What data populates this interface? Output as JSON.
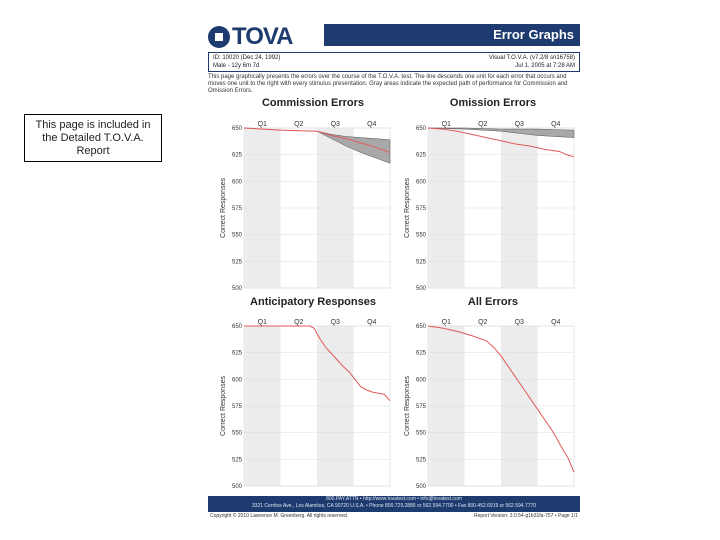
{
  "note": "This page is included in the Detailed T.O.V.A. Report",
  "report": {
    "logo_text": "TOVA",
    "header_title": "Error Graphs",
    "id_line1": "ID: 10020   (Dec 24, 1992)",
    "id_line2": "Male - 12y 6m 7d",
    "test_line1": "Visual T.O.V.A. (v7.2/8 sn16758)",
    "test_line2": "Jul 1, 2005 at 7:28 AM",
    "description": "This page graphically presents the errors over the course of the T.O.V.A. test. The line descends one unit for each error that occurs and moves one unit to the right with every stimulus presentation. Gray areas indicate the expected path of performance for Commission and Omission Errors.",
    "y_axis_label": "Correct Responses",
    "quarter_labels": [
      "Q1",
      "Q2",
      "Q3",
      "Q4"
    ],
    "footer_line1": "800.PAY.ATTN • http://www.tovatest.com • info@tovatest.com",
    "footer_line2": "3321 Cerritos Ave., Los Alamitos, CA 90720 U.S.A. • Phone 800.729.2886 or 562.594.7700 • Fax 800.452.6919 or 562.594.7770",
    "copyright": "Copyright © 2010 Lawrence M. Greenberg. All rights reserved.",
    "version": "Report Version: 3.0.54-g1b31fa-757 • Page 1/1"
  },
  "chart_data": [
    {
      "type": "line",
      "title": "Commission Errors",
      "ylabel": "Correct Responses",
      "yticks": [
        "650",
        "625",
        "600",
        "575",
        "550",
        "525",
        "500"
      ],
      "ylim": [
        500,
        650
      ],
      "xlim": [
        0,
        100
      ],
      "quarters": [
        "Q1",
        "Q2",
        "Q3",
        "Q4"
      ],
      "shaded_quarters": [
        0,
        2
      ],
      "band_upper": [
        [
          0,
          650
        ],
        [
          25,
          648
        ],
        [
          50,
          647
        ],
        [
          60,
          644
        ],
        [
          70,
          642
        ],
        [
          80,
          641
        ],
        [
          90,
          640
        ],
        [
          100,
          639
        ]
      ],
      "band_lower": [
        [
          0,
          650
        ],
        [
          25,
          648
        ],
        [
          50,
          647
        ],
        [
          60,
          640
        ],
        [
          70,
          633
        ],
        [
          80,
          627
        ],
        [
          90,
          622
        ],
        [
          100,
          617
        ]
      ],
      "series": [
        {
          "color": "#e05a5a",
          "points": [
            [
              0,
              650
            ],
            [
              25,
              648
            ],
            [
              50,
              647
            ],
            [
              60,
              643
            ],
            [
              70,
              640
            ],
            [
              80,
              636
            ],
            [
              90,
              632
            ],
            [
              100,
              627
            ]
          ]
        }
      ]
    },
    {
      "type": "line",
      "title": "Omission Errors",
      "ylabel": "Correct Responses",
      "yticks": [
        "650",
        "625",
        "600",
        "575",
        "550",
        "525",
        "500"
      ],
      "ylim": [
        500,
        650
      ],
      "xlim": [
        0,
        100
      ],
      "quarters": [
        "Q1",
        "Q2",
        "Q3",
        "Q4"
      ],
      "shaded_quarters": [
        0,
        2
      ],
      "band_upper": [
        [
          0,
          650
        ],
        [
          25,
          650
        ],
        [
          50,
          649
        ],
        [
          75,
          649
        ],
        [
          100,
          648
        ]
      ],
      "band_lower": [
        [
          0,
          650
        ],
        [
          25,
          649
        ],
        [
          50,
          647
        ],
        [
          75,
          643
        ],
        [
          100,
          641
        ]
      ],
      "series": [
        {
          "color": "#e05a5a",
          "points": [
            [
              0,
              650
            ],
            [
              10,
              649
            ],
            [
              20,
              647
            ],
            [
              30,
              644
            ],
            [
              40,
              641
            ],
            [
              50,
              638
            ],
            [
              60,
              635
            ],
            [
              70,
              633
            ],
            [
              80,
              630
            ],
            [
              90,
              628
            ],
            [
              95,
              625
            ],
            [
              100,
              623
            ]
          ]
        }
      ]
    },
    {
      "type": "line",
      "title": "Anticipatory Responses",
      "ylabel": "Correct Responses",
      "yticks": [
        "650",
        "625",
        "600",
        "575",
        "550",
        "525",
        "500"
      ],
      "ylim": [
        500,
        650
      ],
      "xlim": [
        0,
        100
      ],
      "quarters": [
        "Q1",
        "Q2",
        "Q3",
        "Q4"
      ],
      "shaded_quarters": [
        0,
        2
      ],
      "series": [
        {
          "color": "#e05a5a",
          "points": [
            [
              0,
              650
            ],
            [
              20,
              650
            ],
            [
              45,
              650
            ],
            [
              48,
              648
            ],
            [
              52,
              638
            ],
            [
              56,
              630
            ],
            [
              60,
              624
            ],
            [
              64,
              618
            ],
            [
              68,
              612
            ],
            [
              72,
              607
            ],
            [
              76,
              600
            ],
            [
              80,
              593
            ],
            [
              84,
              590
            ],
            [
              88,
              588
            ],
            [
              92,
              587
            ],
            [
              96,
              586
            ],
            [
              100,
              580
            ]
          ]
        }
      ]
    },
    {
      "type": "line",
      "title": "All Errors",
      "ylabel": "Correct Responses",
      "yticks": [
        "650",
        "625",
        "600",
        "575",
        "550",
        "525",
        "500"
      ],
      "ylim": [
        500,
        650
      ],
      "xlim": [
        0,
        100
      ],
      "quarters": [
        "Q1",
        "Q2",
        "Q3",
        "Q4"
      ],
      "shaded_quarters": [
        0,
        2
      ],
      "series": [
        {
          "color": "#e05a5a",
          "points": [
            [
              0,
              650
            ],
            [
              10,
              648
            ],
            [
              20,
              645
            ],
            [
              30,
              641
            ],
            [
              40,
              636
            ],
            [
              45,
              630
            ],
            [
              50,
              622
            ],
            [
              55,
              612
            ],
            [
              60,
              602
            ],
            [
              65,
              592
            ],
            [
              70,
              582
            ],
            [
              75,
              572
            ],
            [
              80,
              562
            ],
            [
              85,
              552
            ],
            [
              88,
              545
            ],
            [
              92,
              535
            ],
            [
              96,
              526
            ],
            [
              100,
              513
            ]
          ]
        }
      ]
    }
  ]
}
